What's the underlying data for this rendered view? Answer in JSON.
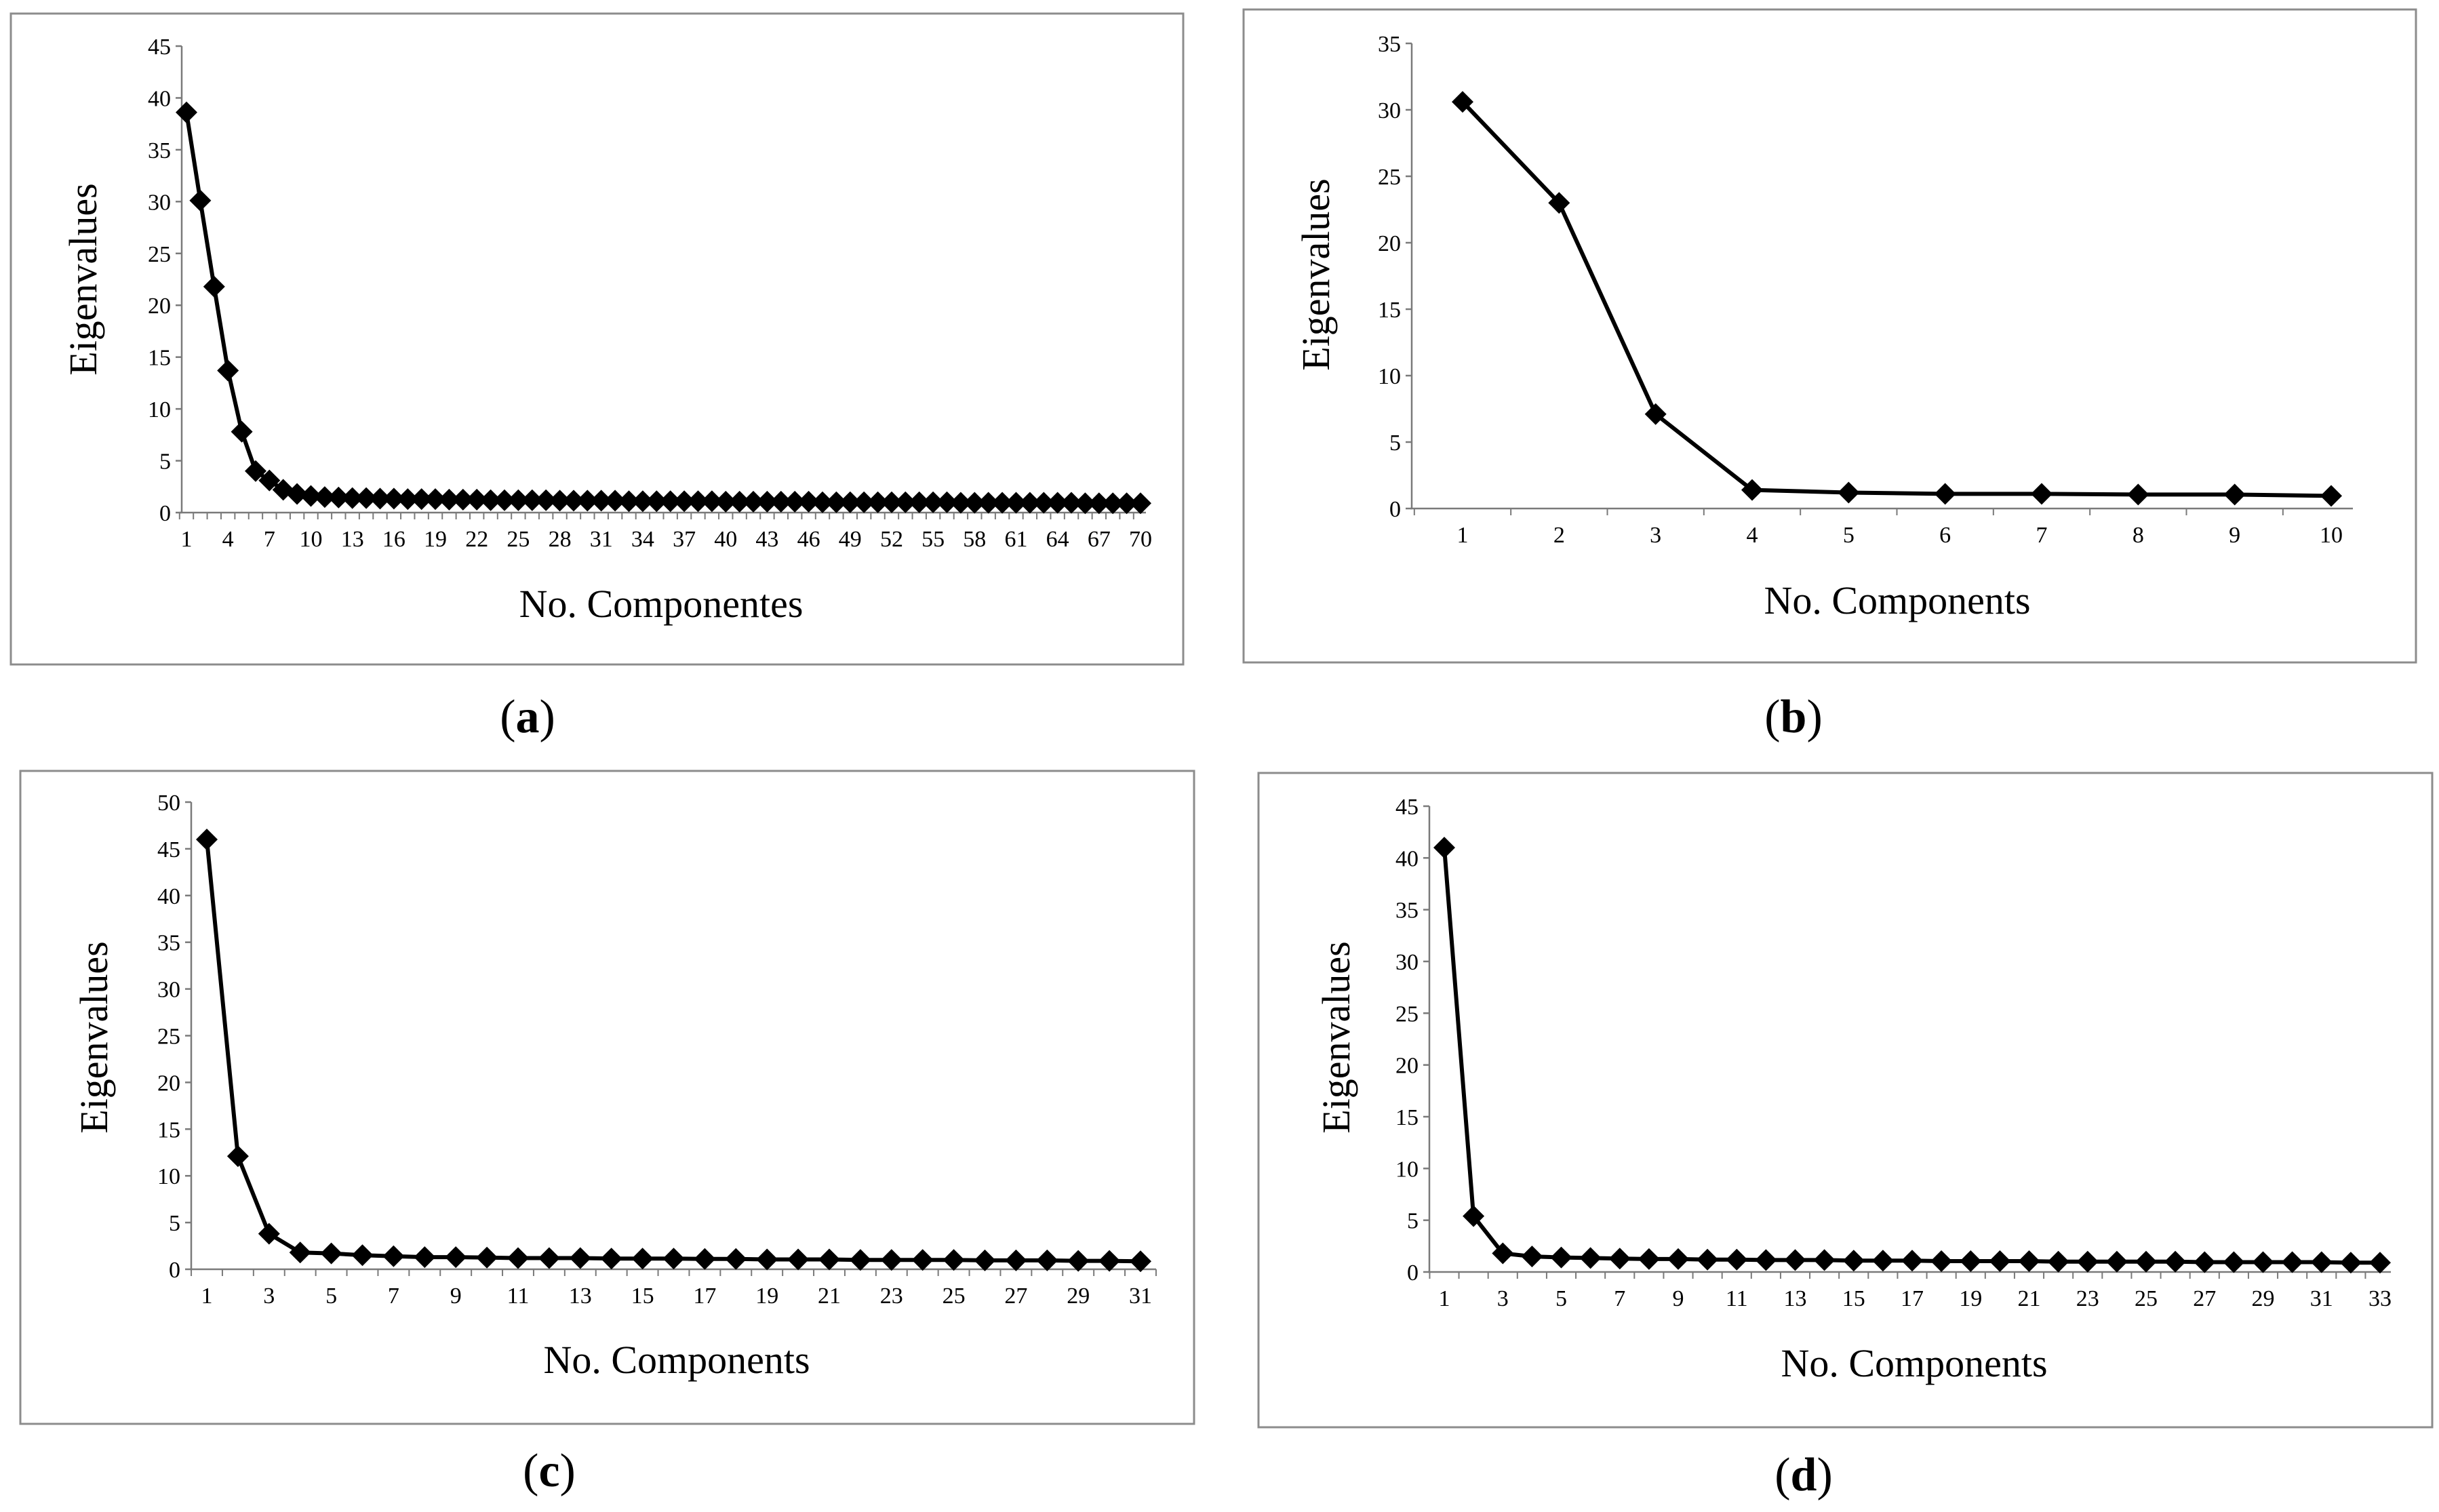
{
  "chart_data": [
    {
      "type": "line",
      "panel": "a",
      "caption_letter": "a",
      "ylabel": "Eigenvalues",
      "xlabel": "No. Componentes",
      "ylim": [
        0,
        45
      ],
      "yticks": [
        0,
        5,
        10,
        15,
        20,
        25,
        30,
        35,
        40,
        45
      ],
      "x_count": 70,
      "x_tick_step": 3,
      "marker": "diamond",
      "grid": false,
      "legend": "none",
      "series": [
        {
          "values": [
            38.6,
            30.1,
            21.8,
            13.7,
            7.8,
            4.0,
            3.1,
            2.2,
            1.8,
            1.6,
            1.5,
            1.45,
            1.4,
            1.4,
            1.35,
            1.35,
            1.3,
            1.3,
            1.3,
            1.25,
            1.25,
            1.25,
            1.2,
            1.2,
            1.2,
            1.2,
            1.2,
            1.15,
            1.15,
            1.15,
            1.15,
            1.15,
            1.1,
            1.1,
            1.1,
            1.1,
            1.1,
            1.1,
            1.1,
            1.05,
            1.05,
            1.05,
            1.05,
            1.05,
            1.05,
            1.05,
            1.0,
            1.0,
            1.0,
            1.0,
            1.0,
            1.0,
            1.0,
            1.0,
            1.0,
            1.0,
            0.95,
            0.95,
            0.95,
            0.95,
            0.95,
            0.95,
            0.95,
            0.95,
            0.95,
            0.9,
            0.9,
            0.9,
            0.9,
            0.9
          ]
        }
      ]
    },
    {
      "type": "line",
      "panel": "b",
      "caption_letter": "b",
      "ylabel": "Eigenvalues",
      "xlabel": "No. Components",
      "ylim": [
        0,
        35
      ],
      "yticks": [
        0,
        5,
        10,
        15,
        20,
        25,
        30,
        35
      ],
      "x_count": 10,
      "x_tick_step": 1,
      "marker": "diamond",
      "grid": false,
      "legend": "none",
      "series": [
        {
          "values": [
            30.6,
            23.0,
            7.1,
            1.4,
            1.2,
            1.1,
            1.1,
            1.05,
            1.05,
            0.95
          ]
        }
      ]
    },
    {
      "type": "line",
      "panel": "c",
      "caption_letter": "c",
      "ylabel": "Eigenvalues",
      "xlabel": "No. Components",
      "ylim": [
        0,
        50
      ],
      "yticks": [
        0,
        5,
        10,
        15,
        20,
        25,
        30,
        35,
        40,
        45,
        50
      ],
      "x_count": 31,
      "x_tick_step": 2,
      "marker": "diamond",
      "grid": false,
      "legend": "none",
      "series": [
        {
          "values": [
            46.0,
            12.1,
            3.8,
            1.8,
            1.7,
            1.5,
            1.4,
            1.3,
            1.3,
            1.25,
            1.2,
            1.2,
            1.2,
            1.15,
            1.15,
            1.15,
            1.1,
            1.1,
            1.05,
            1.05,
            1.05,
            1.0,
            1.0,
            1.0,
            1.0,
            0.95,
            0.95,
            0.95,
            0.9,
            0.9,
            0.85
          ]
        }
      ]
    },
    {
      "type": "line",
      "panel": "d",
      "caption_letter": "d",
      "ylabel": "Eigenvalues",
      "xlabel": "No. Components",
      "ylim": [
        0,
        45
      ],
      "yticks": [
        0,
        5,
        10,
        15,
        20,
        25,
        30,
        35,
        40,
        45
      ],
      "x_count": 33,
      "x_tick_step": 2,
      "marker": "diamond",
      "grid": false,
      "legend": "none",
      "series": [
        {
          "values": [
            41.0,
            5.4,
            1.8,
            1.5,
            1.4,
            1.35,
            1.3,
            1.25,
            1.25,
            1.2,
            1.2,
            1.15,
            1.15,
            1.15,
            1.1,
            1.1,
            1.1,
            1.05,
            1.05,
            1.05,
            1.05,
            1.0,
            1.0,
            1.0,
            1.0,
            1.0,
            0.95,
            0.95,
            0.95,
            0.95,
            0.95,
            0.9,
            0.9
          ]
        }
      ]
    }
  ]
}
